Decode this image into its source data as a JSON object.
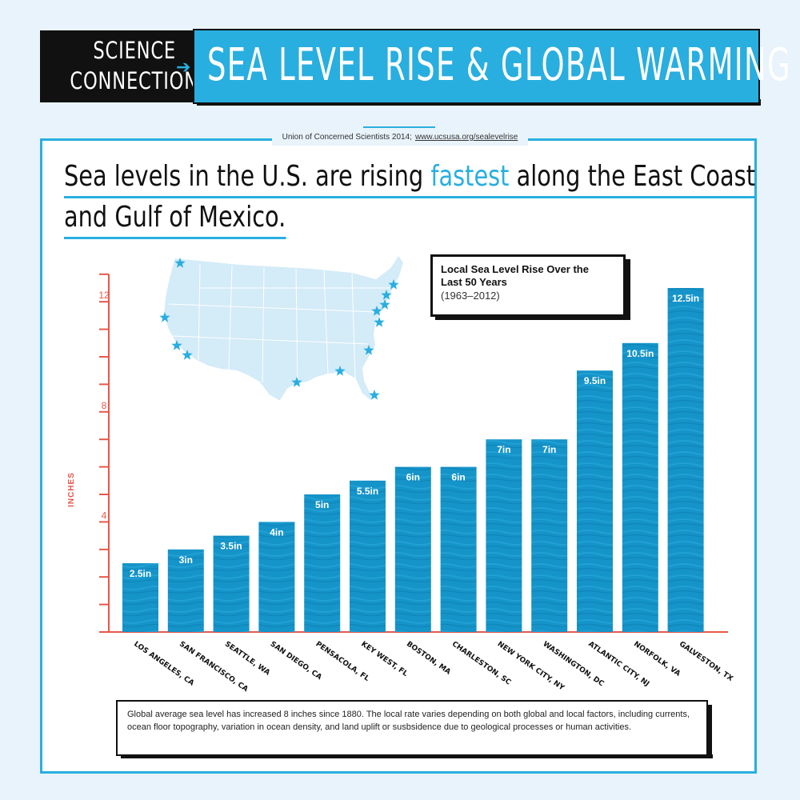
{
  "banner": {
    "left_line1": "SCIENCE",
    "left_line2": "CONNECTIONS",
    "title": "SEA LEVEL RISE & GLOBAL WARMING"
  },
  "source": {
    "text": "Union of Concerned Scientists 2014;",
    "link": "www.ucsusa.org/sealevelrise"
  },
  "headline": {
    "part1": "Sea levels in the U.S. are rising ",
    "accent": "fastest",
    "part2": " along the East Coast",
    "line2": "and Gulf of Mexico."
  },
  "legend": {
    "title": "Local Sea Level Rise Over the Last 50 Years",
    "subtitle": "(1963–2012)"
  },
  "note": "Global average sea level has increased 8 inches since 1880. The local rate varies depending on both global and local factors, including currents, ocean floor topography, variation in ocean density, and land uplift or susbsidence due to geological processes or human activities.",
  "colors": {
    "accent": "#29aee0",
    "bar": "#1594c9",
    "axis": "#e8564a",
    "dark": "#111111"
  },
  "map": {
    "icon": "us-map-icon",
    "marker_icon": "star-icon",
    "marker_count": 13
  },
  "chart_data": {
    "type": "bar",
    "ylabel": "INCHES",
    "ylim": [
      0,
      13
    ],
    "yticks": [
      4,
      8,
      12
    ],
    "minor_tick_step": 1,
    "categories": [
      "LOS ANGELES, CA",
      "SAN FRANCISCO, CA",
      "SEATTLE, WA",
      "SAN DIEGO, CA",
      "PENSACOLA, FL",
      "KEY WEST, FL",
      "BOSTON, MA",
      "CHARLESTON, SC",
      "NEW YORK CITY, NY",
      "WASHINGTON, DC",
      "ATLANTIC CITY, NJ",
      "NORFOLK, VA",
      "GALVESTON, TX"
    ],
    "values": [
      2.5,
      3,
      3.5,
      4,
      5,
      5.5,
      6,
      6,
      7,
      7,
      9.5,
      10.5,
      12.5
    ],
    "data_labels": [
      "2.5in",
      "3in",
      "3.5in",
      "4in",
      "5in",
      "5.5in",
      "6in",
      "6in",
      "7in",
      "7in",
      "9.5in",
      "10.5in",
      "12.5in"
    ],
    "grid": false
  }
}
